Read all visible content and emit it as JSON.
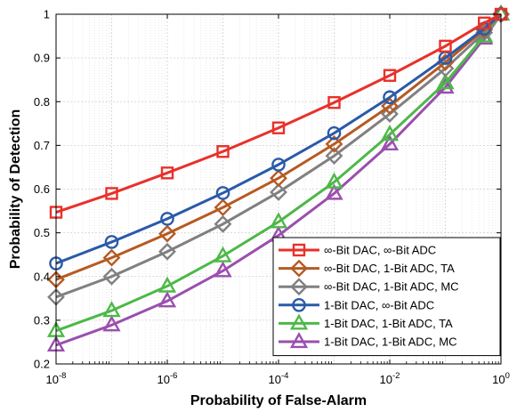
{
  "chart_data": {
    "type": "line",
    "xscale": "log",
    "xlabel": "Probability of False-Alarm",
    "ylabel": "Probability of Detection",
    "xlim": [
      1e-08,
      1
    ],
    "ylim": [
      0.2,
      1
    ],
    "grid": true,
    "legend_position": "bottom-right",
    "x_ticks": [
      1e-08,
      1e-06,
      0.0001,
      0.01,
      1
    ],
    "x_tick_labels": [
      {
        "base": "10",
        "exp": "-8"
      },
      {
        "base": "10",
        "exp": "-6"
      },
      {
        "base": "10",
        "exp": "-4"
      },
      {
        "base": "10",
        "exp": "-2"
      },
      {
        "base": "10",
        "exp": "0"
      }
    ],
    "y_ticks": [
      0.2,
      0.3,
      0.4,
      0.5,
      0.6,
      0.7,
      0.8,
      0.9,
      1
    ],
    "y_tick_labels": [
      "0.2",
      "0.3",
      "0.4",
      "0.5",
      "0.6",
      "0.7",
      "0.8",
      "0.9",
      "1"
    ],
    "x": [
      1e-08,
      1e-07,
      1e-06,
      1e-05,
      0.0001,
      0.001,
      0.01,
      0.1,
      0.5,
      1
    ],
    "series": [
      {
        "name": "∞-Bit DAC, ∞-Bit ADC",
        "color": "#e8312a",
        "marker": "square",
        "values": [
          0.547,
          0.59,
          0.637,
          0.686,
          0.74,
          0.798,
          0.86,
          0.927,
          0.98,
          1.0
        ]
      },
      {
        "name": "∞-Bit DAC, 1-Bit ADC, TA",
        "color": "#b65a22",
        "marker": "diamond",
        "values": [
          0.393,
          0.443,
          0.498,
          0.558,
          0.625,
          0.703,
          0.79,
          0.89,
          0.965,
          1.0
        ]
      },
      {
        "name": "∞-Bit DAC, 1-Bit ADC, MC",
        "color": "#808080",
        "marker": "diamond",
        "values": [
          0.353,
          0.4,
          0.457,
          0.52,
          0.593,
          0.676,
          0.772,
          0.876,
          0.958,
          1.0
        ]
      },
      {
        "name": "1-Bit DAC, ∞-Bit ADC",
        "color": "#2a5aa8",
        "marker": "circle",
        "values": [
          0.43,
          0.479,
          0.532,
          0.591,
          0.656,
          0.728,
          0.81,
          0.9,
          0.967,
          1.0
        ]
      },
      {
        "name": "1-Bit DAC, 1-Bit ADC, TA",
        "color": "#4db848",
        "marker": "triangle",
        "values": [
          0.276,
          0.322,
          0.378,
          0.447,
          0.525,
          0.616,
          0.725,
          0.843,
          0.95,
          1.0
        ]
      },
      {
        "name": "1-Bit DAC, 1-Bit ADC, MC",
        "color": "#9a4fae",
        "marker": "triangle",
        "values": [
          0.243,
          0.289,
          0.344,
          0.413,
          0.494,
          0.59,
          0.703,
          0.833,
          0.945,
          1.0
        ]
      }
    ]
  }
}
